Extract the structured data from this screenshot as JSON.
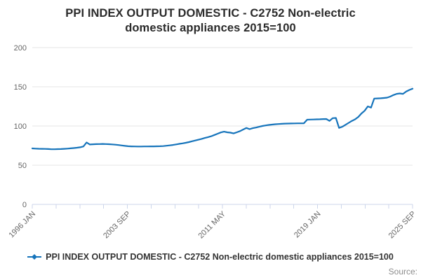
{
  "title": {
    "line1": "PPI INDEX OUTPUT DOMESTIC - C2752 Non-electric",
    "line2": "domestic appliances 2015=100"
  },
  "legend": {
    "label": "PPI INDEX OUTPUT DOMESTIC - C2752 Non-electric domestic appliances 2015=100"
  },
  "source_label": "Source:",
  "colors": {
    "line": "#1674bb",
    "grid": "#e6e6e6",
    "axis": "#ccd6eb",
    "axis_text": "#666666",
    "title_text": "#2b2b2b",
    "legend_text": "#333333",
    "source_text": "#8c8c8c"
  },
  "chart_data": {
    "type": "line",
    "title": "PPI INDEX OUTPUT DOMESTIC - C2752 Non-electric domestic appliances 2015=100",
    "x_start": "1996 JAN",
    "x_end": "2025 SEP",
    "x_tick_labels": [
      "1996 JAN",
      "2003 SEP",
      "2011 MAY",
      "2019 JAN",
      "2025 SEP"
    ],
    "minor_tick_count": 17,
    "y_ticks": [
      0,
      50,
      100,
      150,
      200
    ],
    "ylim": [
      0,
      200
    ],
    "grid": "horizontal",
    "legend_position": "bottom",
    "sampling": "quarterly 1996Q1-2025Q3",
    "series": [
      {
        "name": "PPI INDEX OUTPUT DOMESTIC - C2752 Non-electric domestic appliances 2015=100",
        "values": [
          71.4,
          71.2,
          71.0,
          70.9,
          70.8,
          70.6,
          70.4,
          70.4,
          70.5,
          70.6,
          70.9,
          71.2,
          71.5,
          71.9,
          72.3,
          72.9,
          73.9,
          79.0,
          76.4,
          76.7,
          76.9,
          77.0,
          77.1,
          77.0,
          76.8,
          76.5,
          76.2,
          75.7,
          75.2,
          74.6,
          74.2,
          74.0,
          73.9,
          73.8,
          73.8,
          73.9,
          73.9,
          74.0,
          74.0,
          74.1,
          74.2,
          74.4,
          74.8,
          75.3,
          75.8,
          76.5,
          77.2,
          77.9,
          78.6,
          79.5,
          80.5,
          81.5,
          82.5,
          83.6,
          84.7,
          85.8,
          87.0,
          88.6,
          90.2,
          91.8,
          92.8,
          92.0,
          91.5,
          90.5,
          92.0,
          93.5,
          95.5,
          97.5,
          96.0,
          97.2,
          98.0,
          99.0,
          100.0,
          100.7,
          101.3,
          101.8,
          102.2,
          102.5,
          102.8,
          103.0,
          103.1,
          103.2,
          103.3,
          103.4,
          103.4,
          103.5,
          108.0,
          108.2,
          108.3,
          108.5,
          108.6,
          108.8,
          108.9,
          106.5,
          110.0,
          110.3,
          97.6,
          99.0,
          101.5,
          104.0,
          106.5,
          108.5,
          111.5,
          116.0,
          119.5,
          125.0,
          123.5,
          135.0,
          135.2,
          135.4,
          135.7,
          136.2,
          137.5,
          139.5,
          141.0,
          141.5,
          141.0,
          144.0,
          146.0,
          147.6
        ]
      }
    ]
  }
}
